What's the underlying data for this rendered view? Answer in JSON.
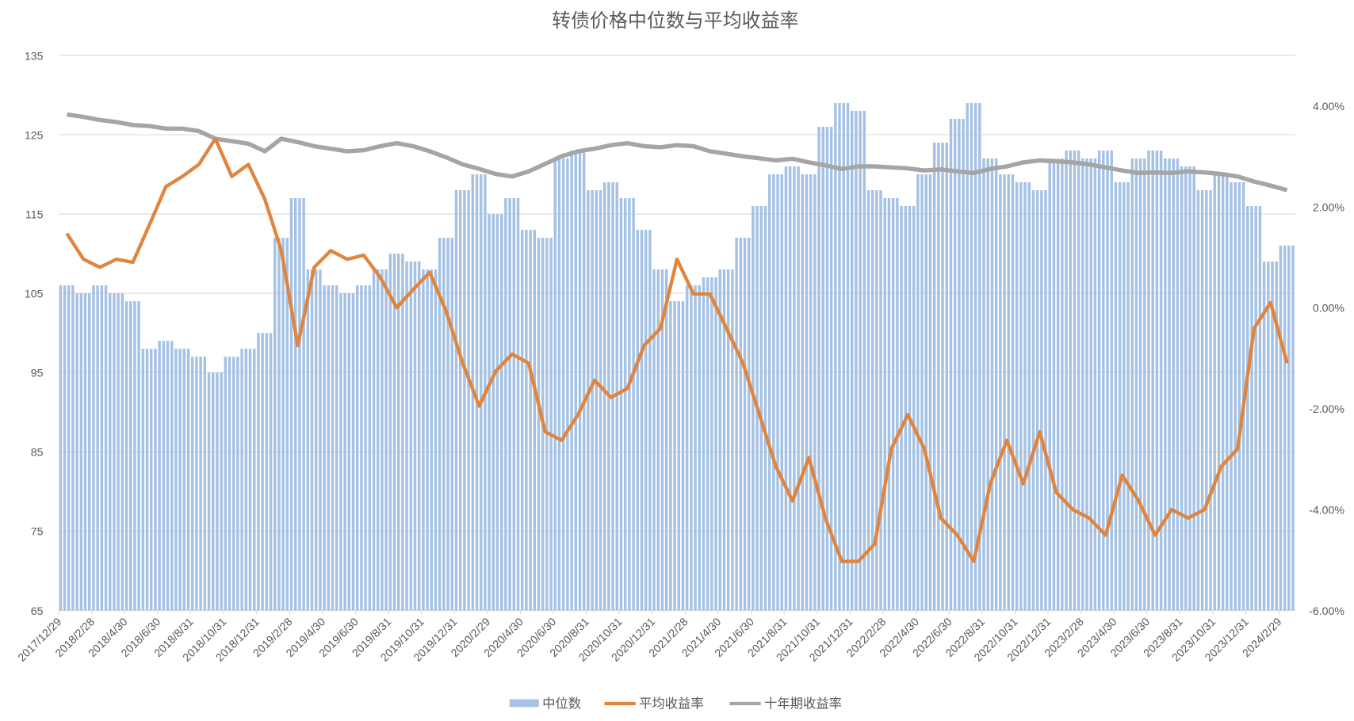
{
  "chart_data": {
    "type": "bar+line",
    "title": "转债价格中位数与平均收益率",
    "left_axis": {
      "ylim": [
        65,
        135
      ],
      "ticks": [
        "65",
        "75",
        "85",
        "95",
        "105",
        "115",
        "125",
        "135"
      ]
    },
    "right_axis": {
      "ylim": [
        -6,
        5
      ],
      "ticks": [
        "-6.00%",
        "-4.00%",
        "-2.00%",
        "0.00%",
        "2.00%",
        "4.00%"
      ],
      "tick_values": [
        -6,
        -4,
        -2,
        0,
        2,
        4
      ]
    },
    "grid": true,
    "legend_position": "bottom",
    "x_tick_labels": [
      "2017/12/29",
      "2018/2/28",
      "2018/4/30",
      "2018/6/30",
      "2018/8/31",
      "2018/10/31",
      "2018/12/31",
      "2019/2/28",
      "2019/4/30",
      "2019/6/30",
      "2019/8/31",
      "2019/10/31",
      "2019/12/31",
      "2020/2/29",
      "2020/4/30",
      "2020/6/30",
      "2020/8/31",
      "2020/10/31",
      "2020/12/31",
      "2021/2/28",
      "2021/4/30",
      "2021/6/30",
      "2021/8/31",
      "2021/10/31",
      "2021/12/31",
      "2022/2/28",
      "2022/4/30",
      "2022/6/30",
      "2022/8/31",
      "2022/10/31",
      "2022/12/31",
      "2023/2/28",
      "2023/4/30",
      "2023/6/30",
      "2023/8/31",
      "2023/10/31",
      "2023/12/31",
      "2024/2/29"
    ],
    "x_sample": "monthly, 2018-01 to 2024-03",
    "series": [
      {
        "name": "中位数",
        "type": "bar",
        "axis": "left",
        "color": "#a5c2e4",
        "values": [
          106,
          105,
          106,
          105,
          104,
          98,
          99,
          98,
          97,
          95,
          97,
          98,
          100,
          112,
          117,
          108,
          106,
          105,
          106,
          108,
          110,
          109,
          108,
          112,
          118,
          120,
          115,
          117,
          113,
          112,
          122,
          123,
          118,
          119,
          117,
          113,
          108,
          104,
          106,
          107,
          108,
          112,
          116,
          120,
          121,
          120,
          126,
          129,
          128,
          118,
          117,
          116,
          120,
          124,
          127,
          129,
          122,
          120,
          119,
          118,
          122,
          123,
          122,
          123,
          119,
          122,
          123,
          122,
          121,
          118,
          120,
          119,
          116,
          109,
          111
        ]
      },
      {
        "name": "平均收益率",
        "type": "line",
        "axis": "right",
        "color": "#e0843e",
        "values": [
          1.47,
          0.96,
          0.8,
          0.96,
          0.9,
          1.64,
          2.4,
          2.6,
          2.84,
          3.35,
          2.6,
          2.84,
          2.15,
          1.13,
          -0.75,
          0.8,
          1.13,
          0.96,
          1.04,
          0.6,
          0.0,
          0.36,
          0.7,
          -0.07,
          -1.1,
          -1.95,
          -1.26,
          -0.92,
          -1.1,
          -2.46,
          -2.63,
          -2.12,
          -1.44,
          -1.78,
          -1.6,
          -0.75,
          -0.41,
          0.96,
          0.27,
          0.27,
          -0.41,
          -1.1,
          -2.12,
          -3.15,
          -3.83,
          -2.97,
          -4.17,
          -5.03,
          -5.03,
          -4.68,
          -2.8,
          -2.12,
          -2.8,
          -4.17,
          -4.51,
          -5.03,
          -3.49,
          -2.63,
          -3.49,
          -2.46,
          -3.66,
          -4.0,
          -4.17,
          -4.51,
          -3.32,
          -3.83,
          -4.51,
          -4.0,
          -4.17,
          -4.0,
          -3.15,
          -2.8,
          -0.41,
          0.1,
          -1.1
        ]
      },
      {
        "name": "十年期收益率",
        "type": "line",
        "axis": "right",
        "color": "#a5a5a5",
        "values": [
          3.83,
          3.78,
          3.72,
          3.68,
          3.62,
          3.6,
          3.55,
          3.55,
          3.5,
          3.35,
          3.3,
          3.25,
          3.1,
          3.35,
          3.28,
          3.2,
          3.15,
          3.1,
          3.12,
          3.2,
          3.26,
          3.2,
          3.1,
          2.98,
          2.84,
          2.75,
          2.65,
          2.6,
          2.7,
          2.85,
          3.0,
          3.1,
          3.15,
          3.22,
          3.26,
          3.2,
          3.18,
          3.22,
          3.2,
          3.1,
          3.05,
          3.0,
          2.96,
          2.92,
          2.95,
          2.88,
          2.82,
          2.75,
          2.8,
          2.8,
          2.78,
          2.76,
          2.72,
          2.74,
          2.7,
          2.67,
          2.75,
          2.8,
          2.88,
          2.92,
          2.9,
          2.88,
          2.84,
          2.78,
          2.72,
          2.67,
          2.68,
          2.67,
          2.7,
          2.68,
          2.65,
          2.6,
          2.5,
          2.42,
          2.33
        ]
      }
    ]
  }
}
